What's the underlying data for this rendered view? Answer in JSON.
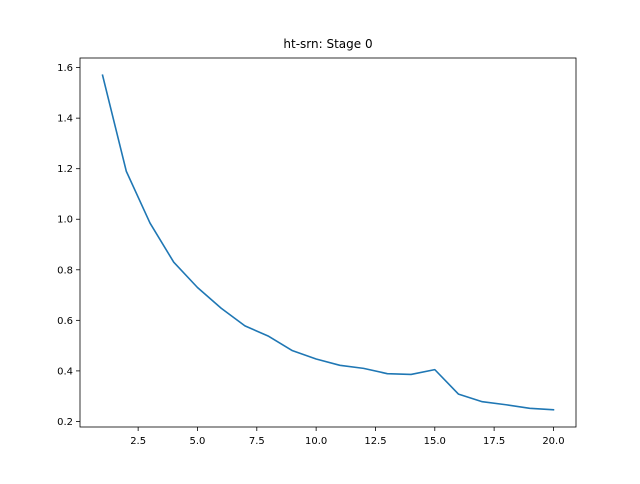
{
  "chart_data": {
    "type": "line",
    "title": "ht-srn: Stage 0",
    "xlabel": "",
    "ylabel": "",
    "xlim": [
      0.05,
      20.95
    ],
    "ylim": [
      0.178,
      1.638
    ],
    "x_ticks": [
      2.5,
      5.0,
      7.5,
      10.0,
      12.5,
      15.0,
      17.5,
      20.0
    ],
    "x_tick_labels": [
      "2.5",
      "5.0",
      "7.5",
      "10.0",
      "12.5",
      "15.0",
      "17.5",
      "20.0"
    ],
    "y_ticks": [
      0.2,
      0.4,
      0.6,
      0.8,
      1.0,
      1.2,
      1.4,
      1.6
    ],
    "y_tick_labels": [
      "0.2",
      "0.4",
      "0.6",
      "0.8",
      "1.0",
      "1.2",
      "1.4",
      "1.6"
    ],
    "grid": false,
    "legend": false,
    "series": [
      {
        "color": "#1f77b4",
        "x": [
          1,
          2,
          3,
          4,
          5,
          6,
          7,
          8,
          9,
          10,
          11,
          12,
          13,
          14,
          15,
          16,
          17,
          18,
          19,
          20
        ],
        "y": [
          1.57,
          1.19,
          0.985,
          0.83,
          0.73,
          0.648,
          0.578,
          0.537,
          0.48,
          0.447,
          0.422,
          0.41,
          0.389,
          0.386,
          0.405,
          0.308,
          0.278,
          0.266,
          0.252,
          0.246
        ]
      }
    ]
  }
}
